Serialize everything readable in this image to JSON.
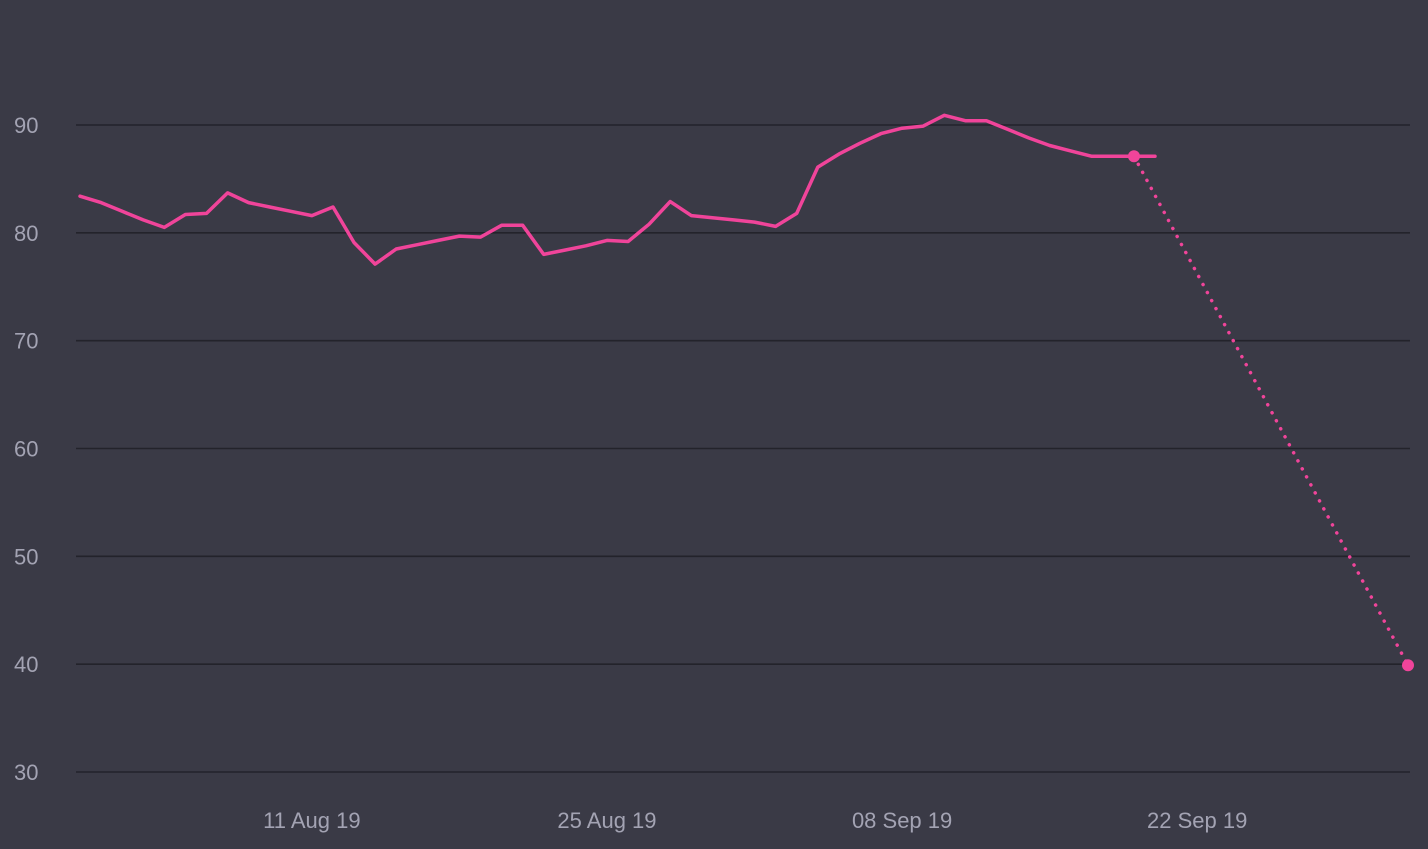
{
  "chart_data": {
    "type": "line",
    "title": "",
    "xlabel": "",
    "ylabel": "",
    "ylim": [
      30,
      90
    ],
    "xlim": [
      "2019-07-31",
      "2019-10-02"
    ],
    "grid": true,
    "y_ticks": [
      {
        "value": 90,
        "label": "90"
      },
      {
        "value": 80,
        "label": "80"
      },
      {
        "value": 70,
        "label": "70"
      },
      {
        "value": 60,
        "label": "60"
      },
      {
        "value": 50,
        "label": "50"
      },
      {
        "value": 40,
        "label": "40"
      },
      {
        "value": 30,
        "label": "30"
      }
    ],
    "x_ticks": [
      {
        "date": "2019-08-11",
        "label": "11 Aug 19"
      },
      {
        "date": "2019-08-25",
        "label": "25 Aug 19"
      },
      {
        "date": "2019-09-08",
        "label": "08 Sep 19"
      },
      {
        "date": "2019-09-22",
        "label": "22 Sep 19"
      }
    ],
    "series": [
      {
        "style": "solid",
        "color": "#f0449a",
        "x": [
          "2019-07-31",
          "2019-08-01",
          "2019-08-02",
          "2019-08-03",
          "2019-08-04",
          "2019-08-05",
          "2019-08-06",
          "2019-08-07",
          "2019-08-08",
          "2019-08-09",
          "2019-08-10",
          "2019-08-11",
          "2019-08-12",
          "2019-08-13",
          "2019-08-14",
          "2019-08-15",
          "2019-08-16",
          "2019-08-17",
          "2019-08-18",
          "2019-08-19",
          "2019-08-20",
          "2019-08-21",
          "2019-08-22",
          "2019-08-23",
          "2019-08-24",
          "2019-08-25",
          "2019-08-26",
          "2019-08-27",
          "2019-08-28",
          "2019-08-29",
          "2019-08-30",
          "2019-08-31",
          "2019-09-01",
          "2019-09-02",
          "2019-09-03",
          "2019-09-04",
          "2019-09-05",
          "2019-09-06",
          "2019-09-07",
          "2019-09-08",
          "2019-09-09",
          "2019-09-10",
          "2019-09-11",
          "2019-09-12",
          "2019-09-13",
          "2019-09-14",
          "2019-09-15",
          "2019-09-16",
          "2019-09-17",
          "2019-09-18",
          "2019-09-19",
          "2019-09-20"
        ],
        "values": [
          83.4,
          82.8,
          82.0,
          81.2,
          80.5,
          81.7,
          81.8,
          83.7,
          82.8,
          82.4,
          82.0,
          81.6,
          82.4,
          79.1,
          77.1,
          78.5,
          78.9,
          79.3,
          79.7,
          79.6,
          80.7,
          80.7,
          78.0,
          78.4,
          78.8,
          79.3,
          79.2,
          80.8,
          82.9,
          81.6,
          81.4,
          81.2,
          81.0,
          80.6,
          81.8,
          86.1,
          87.3,
          88.3,
          89.2,
          89.7,
          89.9,
          90.9,
          90.4,
          90.4,
          89.6,
          88.8,
          88.1,
          87.6,
          87.1,
          87.1,
          87.1,
          87.1
        ]
      },
      {
        "style": "dotted",
        "color": "#f0449a",
        "x": [
          "2019-09-19",
          "2019-10-02"
        ],
        "values": [
          87.1,
          39.9
        ]
      }
    ]
  }
}
